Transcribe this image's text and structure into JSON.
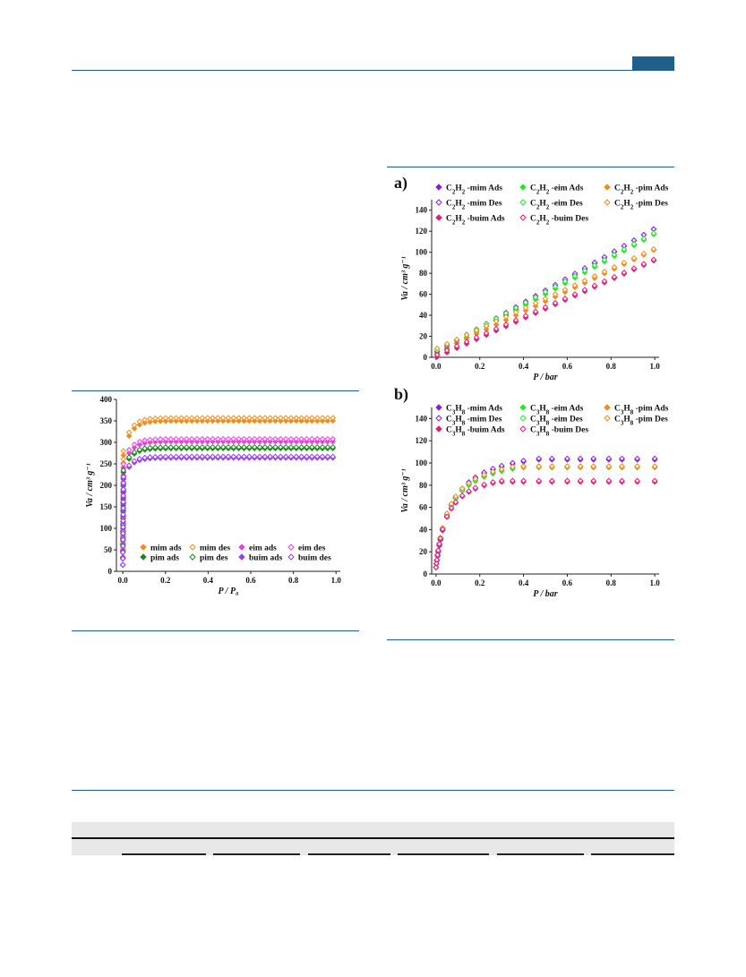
{
  "colors": {
    "rule": "#1f5f8b",
    "mim": "#8b1ae6",
    "eim": "#22e82b",
    "pim": "#f28c1a",
    "buim": "#e8197a",
    "orange": "#f28c1a",
    "magenta": "#f03ee0",
    "green": "#1a8a1a",
    "violet": "#9a3cf5"
  },
  "chart_data": [
    {
      "id": "left",
      "type": "scatter",
      "xlabel": "P / P₀",
      "ylabel": "Va / cm³ g⁻¹",
      "xlim": [
        -0.03,
        1.02
      ],
      "ylim": [
        0,
        400
      ],
      "xticks": [
        "0.0",
        "0.2",
        "0.4",
        "0.6",
        "0.8",
        "1.0"
      ],
      "xtick_values": [
        0.0,
        0.2,
        0.4,
        0.6,
        0.8,
        1.0
      ],
      "yticks": [
        "0",
        "50",
        "100",
        "150",
        "200",
        "250",
        "300",
        "350",
        "400"
      ],
      "ytick_values": [
        0,
        50,
        100,
        150,
        200,
        250,
        300,
        350,
        400
      ],
      "legend_position": "bottom-right",
      "series": [
        {
          "name": "mim ads",
          "color": "orange",
          "filled": true,
          "plateau": 350,
          "knee": 270
        },
        {
          "name": "mim des",
          "color": "orange",
          "filled": false,
          "plateau": 357,
          "knee": 280
        },
        {
          "name": "eim ads",
          "color": "magenta",
          "filled": true,
          "plateau": 302,
          "knee": 240
        },
        {
          "name": "eim des",
          "color": "magenta",
          "filled": false,
          "plateau": 308,
          "knee": 250
        },
        {
          "name": "pim ads",
          "color": "green",
          "filled": true,
          "plateau": 286,
          "knee": 230
        },
        {
          "name": "pim des",
          "color": "green",
          "filled": false,
          "plateau": 289,
          "knee": 235
        },
        {
          "name": "buim ads",
          "color": "violet",
          "filled": true,
          "plateau": 264,
          "knee": 215
        },
        {
          "name": "buim des",
          "color": "violet",
          "filled": false,
          "plateau": 267,
          "knee": 220
        }
      ]
    },
    {
      "id": "a",
      "panel_label": "a)",
      "type": "scatter",
      "xlabel": "P / bar",
      "ylabel": "Va / cm³ g⁻¹",
      "xlim": [
        -0.02,
        1.02
      ],
      "ylim": [
        0,
        150
      ],
      "xticks": [
        "0.0",
        "0.2",
        "0.4",
        "0.6",
        "0.8",
        "1.0"
      ],
      "xtick_values": [
        0.0,
        0.2,
        0.4,
        0.6,
        0.8,
        1.0
      ],
      "yticks": [
        "0",
        "20",
        "40",
        "60",
        "80",
        "100",
        "120",
        "140"
      ],
      "ytick_values": [
        0,
        20,
        40,
        60,
        80,
        100,
        120,
        140
      ],
      "legend_position": "top-left",
      "series": [
        {
          "name_pre": "C",
          "sub1": "2",
          "mid": "H",
          "sub2": "2",
          "name_post": " -mim Ads",
          "color": "mim",
          "filled": true,
          "end": 122,
          "offset": 2
        },
        {
          "name_pre": "C",
          "sub1": "2",
          "mid": "H",
          "sub2": "2",
          "name_post": " -eim Ads",
          "color": "eim",
          "filled": true,
          "end": 117,
          "offset": 3
        },
        {
          "name_pre": "C",
          "sub1": "2",
          "mid": "H",
          "sub2": "2",
          "name_post": " -pim Ads",
          "color": "pim",
          "filled": true,
          "end": 102,
          "offset": 4
        },
        {
          "name_pre": "C",
          "sub1": "2",
          "mid": "H",
          "sub2": "2",
          "name_post": " -mim Des",
          "color": "mim",
          "filled": false,
          "end": 122,
          "offset": 5
        },
        {
          "name_pre": "C",
          "sub1": "2",
          "mid": "H",
          "sub2": "2",
          "name_post": " -eim Des",
          "color": "eim",
          "filled": false,
          "end": 118,
          "offset": 6
        },
        {
          "name_pre": "C",
          "sub1": "2",
          "mid": "H",
          "sub2": "2",
          "name_post": " -pim Des",
          "color": "pim",
          "filled": false,
          "end": 103,
          "offset": 8
        },
        {
          "name_pre": "C",
          "sub1": "2",
          "mid": "H",
          "sub2": "2",
          "name_post": " -buim Ads",
          "color": "buim",
          "filled": true,
          "end": 92,
          "offset": 0
        },
        {
          "name_pre": "C",
          "sub1": "2",
          "mid": "H",
          "sub2": "2",
          "name_post": " -buim Des",
          "color": "buim",
          "filled": false,
          "end": 93,
          "offset": 2
        }
      ]
    },
    {
      "id": "b",
      "panel_label": "b)",
      "type": "scatter",
      "xlabel": "P / bar",
      "ylabel": "Va / cm³ g⁻¹",
      "xlim": [
        -0.02,
        1.02
      ],
      "ylim": [
        0,
        150
      ],
      "xticks": [
        "0.0",
        "0.2",
        "0.4",
        "0.6",
        "0.8",
        "1.0"
      ],
      "xtick_values": [
        0.0,
        0.2,
        0.4,
        0.6,
        0.8,
        1.0
      ],
      "yticks": [
        "0",
        "20",
        "40",
        "60",
        "80",
        "100",
        "120",
        "140"
      ],
      "ytick_values": [
        0,
        20,
        40,
        60,
        80,
        100,
        120,
        140
      ],
      "legend_position": "top-left",
      "series": [
        {
          "name_pre": "C",
          "sub1": "3",
          "mid": "H",
          "sub2": "8",
          "name_post": " -mim Ads",
          "color": "mim",
          "filled": true,
          "plateau": 103,
          "k": 14
        },
        {
          "name_pre": "C",
          "sub1": "3",
          "mid": "H",
          "sub2": "8",
          "name_post": " -eim Ads",
          "color": "eim",
          "filled": true,
          "plateau": 96,
          "k": 16
        },
        {
          "name_pre": "C",
          "sub1": "3",
          "mid": "H",
          "sub2": "8",
          "name_post": " -pim Ads",
          "color": "pim",
          "filled": true,
          "plateau": 96,
          "k": 17
        },
        {
          "name_pre": "C",
          "sub1": "3",
          "mid": "H",
          "sub2": "8",
          "name_post": " -mim Des",
          "color": "mim",
          "filled": false,
          "plateau": 104,
          "k": 14
        },
        {
          "name_pre": "C",
          "sub1": "3",
          "mid": "H",
          "sub2": "8",
          "name_post": " -eim Des",
          "color": "eim",
          "filled": false,
          "plateau": 97,
          "k": 16
        },
        {
          "name_pre": "C",
          "sub1": "3",
          "mid": "H",
          "sub2": "8",
          "name_post": " -pim Des",
          "color": "pim",
          "filled": false,
          "plateau": 97,
          "k": 17
        },
        {
          "name_pre": "C",
          "sub1": "3",
          "mid": "H",
          "sub2": "8",
          "name_post": " -buim Ads",
          "color": "buim",
          "filled": true,
          "plateau": 83,
          "k": 20
        },
        {
          "name_pre": "C",
          "sub1": "3",
          "mid": "H",
          "sub2": "8",
          "name_post": " -buim Des",
          "color": "buim",
          "filled": false,
          "plateau": 84,
          "k": 20
        }
      ]
    }
  ]
}
